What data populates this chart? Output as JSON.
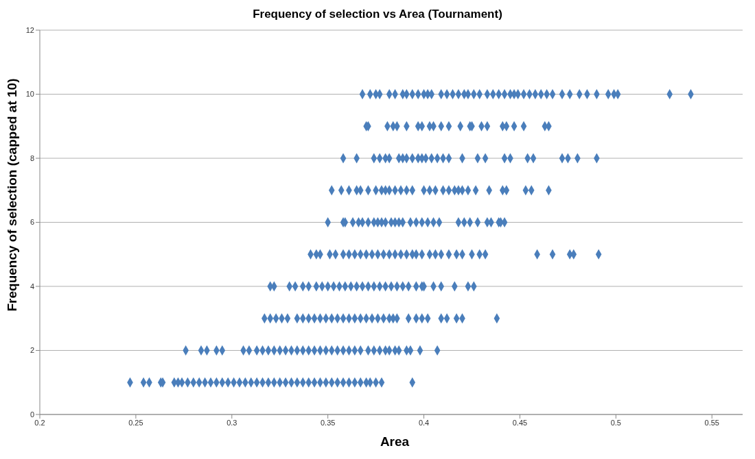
{
  "chart_data": {
    "type": "scatter",
    "title": "Frequency of selection vs Area (Tournament)",
    "xlabel": "Area",
    "ylabel": "Frequency of selection (capped at 10)",
    "xlim": [
      0.2,
      0.566
    ],
    "xticks": [
      0.2,
      0.25,
      0.3,
      0.35,
      0.4,
      0.45,
      0.5,
      0.55
    ],
    "ylim": [
      0,
      12
    ],
    "yticks": [
      0,
      2,
      4,
      6,
      8,
      10,
      12
    ],
    "grid": "y",
    "marker": "diamond",
    "series": [
      {
        "color": "#4a7ebb",
        "x": [
          0.247,
          0.254,
          0.257,
          0.263,
          0.264,
          0.27,
          0.272,
          0.274,
          0.277,
          0.28,
          0.283,
          0.286,
          0.289,
          0.292,
          0.295,
          0.298,
          0.301,
          0.304,
          0.307,
          0.31,
          0.313,
          0.316,
          0.319,
          0.322,
          0.325,
          0.328,
          0.331,
          0.334,
          0.337,
          0.34,
          0.343,
          0.346,
          0.349,
          0.352,
          0.355,
          0.358,
          0.361,
          0.364,
          0.367,
          0.37,
          0.372,
          0.375,
          0.378,
          0.394
        ],
        "values": [
          1,
          1,
          1,
          1,
          1,
          1,
          1,
          1,
          1,
          1,
          1,
          1,
          1,
          1,
          1,
          1,
          1,
          1,
          1,
          1,
          1,
          1,
          1,
          1,
          1,
          1,
          1,
          1,
          1,
          1,
          1,
          1,
          1,
          1,
          1,
          1,
          1,
          1,
          1,
          1,
          1,
          1,
          1,
          1
        ]
      },
      {
        "color": "#4a7ebb",
        "x": [
          0.276,
          0.284,
          0.287,
          0.292,
          0.295,
          0.306,
          0.309,
          0.313,
          0.316,
          0.319,
          0.322,
          0.325,
          0.328,
          0.331,
          0.334,
          0.337,
          0.34,
          0.343,
          0.346,
          0.349,
          0.352,
          0.355,
          0.358,
          0.361,
          0.364,
          0.367,
          0.371,
          0.374,
          0.377,
          0.38,
          0.382,
          0.385,
          0.387,
          0.391,
          0.393,
          0.398,
          0.407
        ],
        "values": [
          2,
          2,
          2,
          2,
          2,
          2,
          2,
          2,
          2,
          2,
          2,
          2,
          2,
          2,
          2,
          2,
          2,
          2,
          2,
          2,
          2,
          2,
          2,
          2,
          2,
          2,
          2,
          2,
          2,
          2,
          2,
          2,
          2,
          2,
          2,
          2,
          2
        ]
      },
      {
        "color": "#4a7ebb",
        "x": [
          0.317,
          0.32,
          0.323,
          0.326,
          0.329,
          0.334,
          0.337,
          0.34,
          0.343,
          0.346,
          0.349,
          0.352,
          0.355,
          0.358,
          0.361,
          0.364,
          0.367,
          0.37,
          0.373,
          0.376,
          0.379,
          0.382,
          0.384,
          0.386,
          0.392,
          0.396,
          0.399,
          0.402,
          0.409,
          0.412,
          0.417,
          0.42,
          0.438
        ],
        "values": [
          3,
          3,
          3,
          3,
          3,
          3,
          3,
          3,
          3,
          3,
          3,
          3,
          3,
          3,
          3,
          3,
          3,
          3,
          3,
          3,
          3,
          3,
          3,
          3,
          3,
          3,
          3,
          3,
          3,
          3,
          3,
          3,
          3
        ]
      },
      {
        "color": "#4a7ebb",
        "x": [
          0.32,
          0.322,
          0.33,
          0.333,
          0.337,
          0.34,
          0.344,
          0.347,
          0.35,
          0.353,
          0.356,
          0.359,
          0.362,
          0.365,
          0.368,
          0.371,
          0.374,
          0.377,
          0.38,
          0.383,
          0.386,
          0.389,
          0.392,
          0.396,
          0.399,
          0.4,
          0.405,
          0.409,
          0.416,
          0.423,
          0.426
        ],
        "values": [
          4,
          4,
          4,
          4,
          4,
          4,
          4,
          4,
          4,
          4,
          4,
          4,
          4,
          4,
          4,
          4,
          4,
          4,
          4,
          4,
          4,
          4,
          4,
          4,
          4,
          4,
          4,
          4,
          4,
          4,
          4
        ]
      },
      {
        "color": "#4a7ebb",
        "x": [
          0.341,
          0.344,
          0.346,
          0.351,
          0.354,
          0.358,
          0.361,
          0.364,
          0.367,
          0.37,
          0.373,
          0.376,
          0.379,
          0.382,
          0.385,
          0.388,
          0.391,
          0.394,
          0.396,
          0.399,
          0.403,
          0.406,
          0.409,
          0.413,
          0.417,
          0.42,
          0.425,
          0.429,
          0.432,
          0.459,
          0.467,
          0.476,
          0.478,
          0.491
        ],
        "values": [
          5,
          5,
          5,
          5,
          5,
          5,
          5,
          5,
          5,
          5,
          5,
          5,
          5,
          5,
          5,
          5,
          5,
          5,
          5,
          5,
          5,
          5,
          5,
          5,
          5,
          5,
          5,
          5,
          5,
          5,
          5,
          5,
          5,
          5
        ]
      },
      {
        "color": "#4a7ebb",
        "x": [
          0.35,
          0.358,
          0.359,
          0.363,
          0.366,
          0.368,
          0.371,
          0.374,
          0.376,
          0.378,
          0.38,
          0.383,
          0.385,
          0.387,
          0.389,
          0.393,
          0.396,
          0.399,
          0.402,
          0.405,
          0.408,
          0.418,
          0.421,
          0.424,
          0.428,
          0.433,
          0.435,
          0.439,
          0.44,
          0.442
        ],
        "values": [
          6,
          6,
          6,
          6,
          6,
          6,
          6,
          6,
          6,
          6,
          6,
          6,
          6,
          6,
          6,
          6,
          6,
          6,
          6,
          6,
          6,
          6,
          6,
          6,
          6,
          6,
          6,
          6,
          6,
          6
        ]
      },
      {
        "color": "#4a7ebb",
        "x": [
          0.352,
          0.357,
          0.361,
          0.365,
          0.367,
          0.371,
          0.375,
          0.378,
          0.38,
          0.382,
          0.385,
          0.388,
          0.391,
          0.394,
          0.4,
          0.403,
          0.406,
          0.41,
          0.413,
          0.416,
          0.418,
          0.42,
          0.423,
          0.427,
          0.434,
          0.441,
          0.443,
          0.453,
          0.456,
          0.465
        ],
        "values": [
          7,
          7,
          7,
          7,
          7,
          7,
          7,
          7,
          7,
          7,
          7,
          7,
          7,
          7,
          7,
          7,
          7,
          7,
          7,
          7,
          7,
          7,
          7,
          7,
          7,
          7,
          7,
          7,
          7,
          7
        ]
      },
      {
        "color": "#4a7ebb",
        "x": [
          0.358,
          0.365,
          0.374,
          0.377,
          0.38,
          0.382,
          0.387,
          0.389,
          0.391,
          0.394,
          0.397,
          0.399,
          0.401,
          0.404,
          0.407,
          0.41,
          0.413,
          0.42,
          0.428,
          0.432,
          0.442,
          0.445,
          0.454,
          0.457,
          0.472,
          0.475,
          0.48,
          0.49
        ],
        "values": [
          8,
          8,
          8,
          8,
          8,
          8,
          8,
          8,
          8,
          8,
          8,
          8,
          8,
          8,
          8,
          8,
          8,
          8,
          8,
          8,
          8,
          8,
          8,
          8,
          8,
          8,
          8,
          8
        ]
      },
      {
        "color": "#4a7ebb",
        "x": [
          0.37,
          0.371,
          0.381,
          0.384,
          0.386,
          0.391,
          0.397,
          0.399,
          0.403,
          0.405,
          0.409,
          0.413,
          0.419,
          0.424,
          0.425,
          0.43,
          0.433,
          0.441,
          0.443,
          0.447,
          0.452,
          0.463,
          0.465
        ],
        "values": [
          9,
          9,
          9,
          9,
          9,
          9,
          9,
          9,
          9,
          9,
          9,
          9,
          9,
          9,
          9,
          9,
          9,
          9,
          9,
          9,
          9,
          9,
          9
        ]
      },
      {
        "color": "#4a7ebb",
        "x": [
          0.368,
          0.372,
          0.375,
          0.377,
          0.382,
          0.385,
          0.389,
          0.391,
          0.394,
          0.397,
          0.4,
          0.402,
          0.404,
          0.409,
          0.412,
          0.415,
          0.418,
          0.421,
          0.423,
          0.426,
          0.429,
          0.433,
          0.436,
          0.439,
          0.442,
          0.445,
          0.447,
          0.449,
          0.452,
          0.455,
          0.458,
          0.461,
          0.464,
          0.467,
          0.472,
          0.476,
          0.481,
          0.485,
          0.49,
          0.496,
          0.499,
          0.501,
          0.528,
          0.539
        ],
        "values": [
          10,
          10,
          10,
          10,
          10,
          10,
          10,
          10,
          10,
          10,
          10,
          10,
          10,
          10,
          10,
          10,
          10,
          10,
          10,
          10,
          10,
          10,
          10,
          10,
          10,
          10,
          10,
          10,
          10,
          10,
          10,
          10,
          10,
          10,
          10,
          10,
          10,
          10,
          10,
          10,
          10,
          10,
          10,
          10
        ]
      }
    ]
  }
}
